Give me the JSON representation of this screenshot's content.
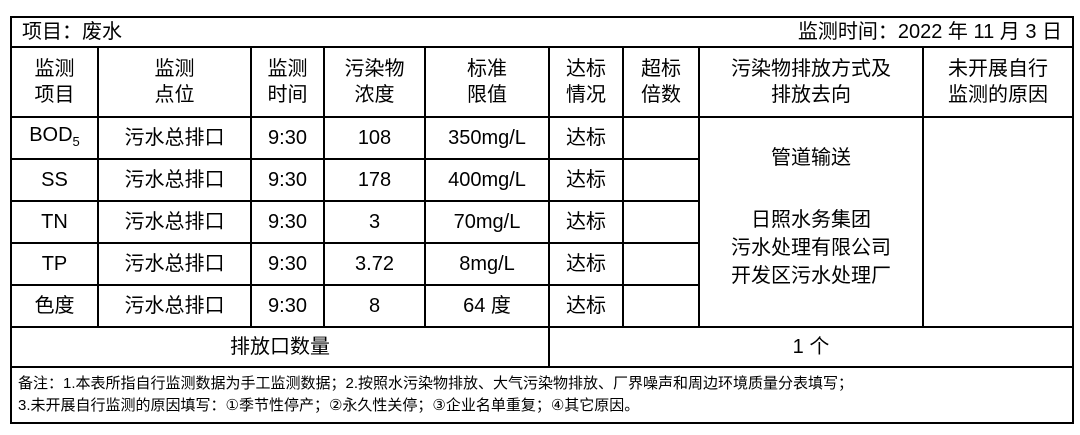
{
  "header": {
    "project": "项目：废水",
    "date": "监测时间：2022 年 11 月 3 日"
  },
  "columns": [
    [
      "监测",
      "项目"
    ],
    [
      "监测",
      "点位"
    ],
    [
      "监测",
      "时间"
    ],
    [
      "污染物",
      "浓度"
    ],
    [
      "标准",
      "限值"
    ],
    [
      "达标",
      "情况"
    ],
    [
      "超标",
      "倍数"
    ],
    [
      "污染物排放方式及",
      "排放去向"
    ],
    [
      "未开展自行",
      "监测的原因"
    ]
  ],
  "rows": [
    {
      "item": "BOD",
      "item_sub": "5",
      "site": "污水总排口",
      "time": "9:30",
      "conc": "108",
      "limit": "350mg/L",
      "status": "达标",
      "excess": ""
    },
    {
      "item": "SS",
      "site": "污水总排口",
      "time": "9:30",
      "conc": "178",
      "limit": "400mg/L",
      "status": "达标",
      "excess": ""
    },
    {
      "item": "TN",
      "site": "污水总排口",
      "time": "9:30",
      "conc": "3",
      "limit": "70mg/L",
      "status": "达标",
      "excess": ""
    },
    {
      "item": "TP",
      "site": "污水总排口",
      "time": "9:30",
      "conc": "3.72",
      "limit": "8mg/L",
      "status": "达标",
      "excess": ""
    },
    {
      "item": "色度",
      "site": "污水总排口",
      "time": "9:30",
      "conc": "8",
      "limit": "64 度",
      "status": "达标",
      "excess": ""
    }
  ],
  "discharge": {
    "method": "管道输送",
    "dest": [
      "日照水务集团",
      "污水处理有限公司",
      "开发区污水处理厂"
    ]
  },
  "reason": "",
  "outlet": {
    "label": "排放口数量",
    "value": "1 个"
  },
  "notes": [
    "备注：1.本表所指自行监测数据为手工监测数据；2.按照水污染物排放、大气污染物排放、厂界噪声和周边环境质量分表填写；",
    "3.未开展自行监测的原因填写：①季节性停产；②永久性关停；③企业名单重复；④其它原因。"
  ]
}
